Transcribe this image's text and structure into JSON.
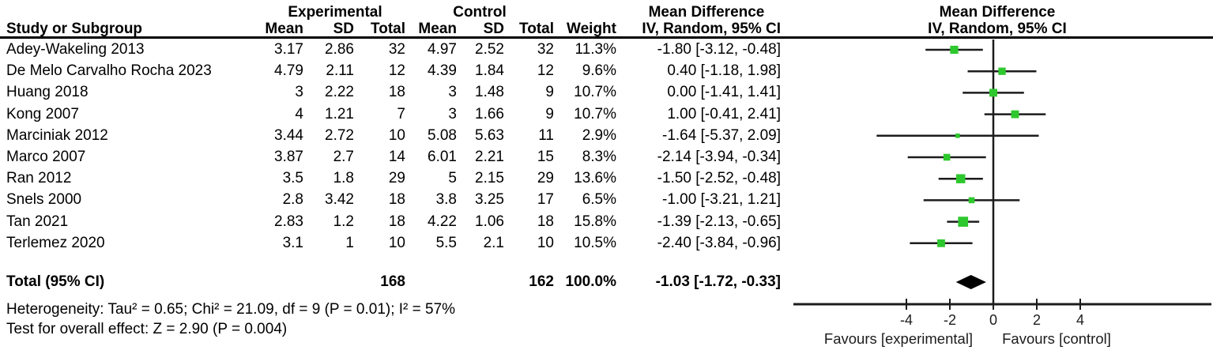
{
  "header": {
    "group_experimental": "Experimental",
    "group_control": "Control",
    "md_col_title": "Mean Difference",
    "md_plot_title": "Mean Difference",
    "study_col": "Study or Subgroup",
    "mean1": "Mean",
    "sd1": "SD",
    "total1": "Total",
    "mean2": "Mean",
    "sd2": "SD",
    "total2": "Total",
    "weight": "Weight",
    "method_col": "IV, Random, 95% CI",
    "method_plot": "IV, Random, 95% CI"
  },
  "studies": [
    {
      "name": "Adey-Wakeling 2013",
      "exp_mean": "3.17",
      "exp_sd": "2.86",
      "exp_total": "32",
      "ctl_mean": "4.97",
      "ctl_sd": "2.52",
      "ctl_total": "32",
      "weight": "11.3%",
      "ci_text": "-1.80 [-3.12, -0.48]",
      "md": -1.8,
      "lo": -3.12,
      "hi": -0.48,
      "weight_val": 11.3
    },
    {
      "name": "De Melo Carvalho Rocha 2023",
      "exp_mean": "4.79",
      "exp_sd": "2.11",
      "exp_total": "12",
      "ctl_mean": "4.39",
      "ctl_sd": "1.84",
      "ctl_total": "12",
      "weight": "9.6%",
      "ci_text": "0.40 [-1.18, 1.98]",
      "md": 0.4,
      "lo": -1.18,
      "hi": 1.98,
      "weight_val": 9.6
    },
    {
      "name": "Huang 2018",
      "exp_mean": "3",
      "exp_sd": "2.22",
      "exp_total": "18",
      "ctl_mean": "3",
      "ctl_sd": "1.48",
      "ctl_total": "9",
      "weight": "10.7%",
      "ci_text": "0.00 [-1.41, 1.41]",
      "md": 0.0,
      "lo": -1.41,
      "hi": 1.41,
      "weight_val": 10.7
    },
    {
      "name": "Kong 2007",
      "exp_mean": "4",
      "exp_sd": "1.21",
      "exp_total": "7",
      "ctl_mean": "3",
      "ctl_sd": "1.66",
      "ctl_total": "9",
      "weight": "10.7%",
      "ci_text": "1.00 [-0.41, 2.41]",
      "md": 1.0,
      "lo": -0.41,
      "hi": 2.41,
      "weight_val": 10.7
    },
    {
      "name": "Marciniak 2012",
      "exp_mean": "3.44",
      "exp_sd": "2.72",
      "exp_total": "10",
      "ctl_mean": "5.08",
      "ctl_sd": "5.63",
      "ctl_total": "11",
      "weight": "2.9%",
      "ci_text": "-1.64 [-5.37, 2.09]",
      "md": -1.64,
      "lo": -5.37,
      "hi": 2.09,
      "weight_val": 2.9
    },
    {
      "name": "Marco 2007",
      "exp_mean": "3.87",
      "exp_sd": "2.7",
      "exp_total": "14",
      "ctl_mean": "6.01",
      "ctl_sd": "2.21",
      "ctl_total": "15",
      "weight": "8.3%",
      "ci_text": "-2.14 [-3.94, -0.34]",
      "md": -2.14,
      "lo": -3.94,
      "hi": -0.34,
      "weight_val": 8.3
    },
    {
      "name": "Ran 2012",
      "exp_mean": "3.5",
      "exp_sd": "1.8",
      "exp_total": "29",
      "ctl_mean": "5",
      "ctl_sd": "2.15",
      "ctl_total": "29",
      "weight": "13.6%",
      "ci_text": "-1.50 [-2.52, -0.48]",
      "md": -1.5,
      "lo": -2.52,
      "hi": -0.48,
      "weight_val": 13.6
    },
    {
      "name": "Snels 2000",
      "exp_mean": "2.8",
      "exp_sd": "3.42",
      "exp_total": "18",
      "ctl_mean": "3.8",
      "ctl_sd": "3.25",
      "ctl_total": "17",
      "weight": "6.5%",
      "ci_text": "-1.00 [-3.21, 1.21]",
      "md": -1.0,
      "lo": -3.21,
      "hi": 1.21,
      "weight_val": 6.5
    },
    {
      "name": "Tan 2021",
      "exp_mean": "2.83",
      "exp_sd": "1.2",
      "exp_total": "18",
      "ctl_mean": "4.22",
      "ctl_sd": "1.06",
      "ctl_total": "18",
      "weight": "15.8%",
      "ci_text": "-1.39 [-2.13, -0.65]",
      "md": -1.39,
      "lo": -2.13,
      "hi": -0.65,
      "weight_val": 15.8
    },
    {
      "name": "Terlemez 2020",
      "exp_mean": "3.1",
      "exp_sd": "1",
      "exp_total": "10",
      "ctl_mean": "5.5",
      "ctl_sd": "2.1",
      "ctl_total": "10",
      "weight": "10.5%",
      "ci_text": "-2.40 [-3.84, -0.96]",
      "md": -2.4,
      "lo": -3.84,
      "hi": -0.96,
      "weight_val": 10.5
    }
  ],
  "total": {
    "label": "Total (95% CI)",
    "exp_total": "168",
    "ctl_total": "162",
    "weight": "100.0%",
    "ci_text": "-1.03 [-1.72, -0.33]",
    "md": -1.03,
    "lo": -1.72,
    "hi": -0.33
  },
  "footer": {
    "heterogeneity": "Heterogeneity: Tau² = 0.65; Chi² = 21.09, df = 9 (P = 0.01); I² = 57%",
    "overall_effect": "Test for overall effect: Z = 2.90 (P = 0.004)"
  },
  "axis": {
    "tick_labels": [
      "-4",
      "-2",
      "0",
      "2",
      "4"
    ],
    "tick_values": [
      -4,
      -2,
      0,
      2,
      4
    ],
    "favours_left": "Favours [experimental]",
    "favours_right": "Favours [control]"
  },
  "colors": {
    "marker_green": "#2DC82D",
    "line_black": "#1c1c1c"
  },
  "chart_data": {
    "type": "scatter",
    "variant": "forest_plot",
    "title": "Mean Difference",
    "effect_measure": "IV, Random, 95% CI",
    "xlabel_left": "Favours [experimental]",
    "xlabel_right": "Favours [control]",
    "x_ticks": [
      -4,
      -2,
      0,
      2,
      4
    ],
    "xlim": [
      -9.5,
      10
    ],
    "zero_line": 0,
    "grid": false,
    "points": [
      {
        "study": "Adey-Wakeling 2013",
        "md": -1.8,
        "ci_low": -3.12,
        "ci_high": -0.48,
        "weight_pct": 11.3
      },
      {
        "study": "De Melo Carvalho Rocha 2023",
        "md": 0.4,
        "ci_low": -1.18,
        "ci_high": 1.98,
        "weight_pct": 9.6
      },
      {
        "study": "Huang 2018",
        "md": 0.0,
        "ci_low": -1.41,
        "ci_high": 1.41,
        "weight_pct": 10.7
      },
      {
        "study": "Kong 2007",
        "md": 1.0,
        "ci_low": -0.41,
        "ci_high": 2.41,
        "weight_pct": 10.7
      },
      {
        "study": "Marciniak 2012",
        "md": -1.64,
        "ci_low": -5.37,
        "ci_high": 2.09,
        "weight_pct": 2.9
      },
      {
        "study": "Marco 2007",
        "md": -2.14,
        "ci_low": -3.94,
        "ci_high": -0.34,
        "weight_pct": 8.3
      },
      {
        "study": "Ran 2012",
        "md": -1.5,
        "ci_low": -2.52,
        "ci_high": -0.48,
        "weight_pct": 13.6
      },
      {
        "study": "Snels 2000",
        "md": -1.0,
        "ci_low": -3.21,
        "ci_high": 1.21,
        "weight_pct": 6.5
      },
      {
        "study": "Tan 2021",
        "md": -1.39,
        "ci_low": -2.13,
        "ci_high": -0.65,
        "weight_pct": 15.8
      },
      {
        "study": "Terlemez 2020",
        "md": -2.4,
        "ci_low": -3.84,
        "ci_high": -0.96,
        "weight_pct": 10.5
      }
    ],
    "summary": {
      "label": "Total (95% CI)",
      "md": -1.03,
      "ci_low": -1.72,
      "ci_high": -0.33,
      "weight_pct": 100.0,
      "heterogeneity": "Tau² = 0.65; Chi² = 21.09, df = 9 (P = 0.01); I² = 57%",
      "overall_effect": "Z = 2.90 (P = 0.004)"
    }
  }
}
